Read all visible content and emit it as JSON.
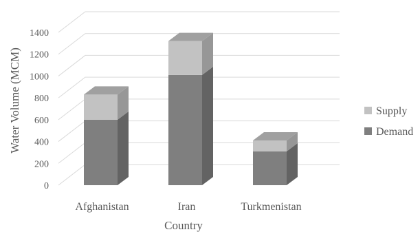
{
  "chart_data": {
    "type": "bar",
    "stacked": true,
    "three_d": true,
    "categories": [
      "Afghanistan",
      "Iran",
      "Turkmenistan"
    ],
    "series": [
      {
        "name": "Demand",
        "values": [
          600,
          1010,
          310
        ],
        "color": "#7f7f7f"
      },
      {
        "name": "Supply",
        "values": [
          230,
          310,
          100
        ],
        "color": "#c2c2c2"
      }
    ],
    "xlabel": "Country",
    "ylabel": "Water Volume (MCM)",
    "ylim": [
      0,
      1400
    ],
    "yticks": [
      0,
      200,
      400,
      600,
      800,
      1000,
      1200,
      1400
    ],
    "grid": true,
    "legend_position": "right"
  }
}
